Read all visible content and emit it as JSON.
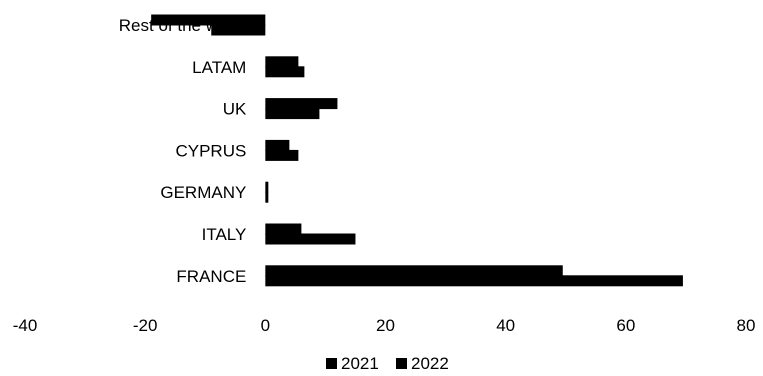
{
  "chart_data": {
    "type": "bar",
    "orientation": "horizontal",
    "categories": [
      "Rest of the world",
      "LATAM",
      "UK",
      "CYPRUS",
      "GERMANY",
      "ITALY",
      "FRANCE"
    ],
    "series": [
      {
        "name": "2021",
        "color": "#000000",
        "values": [
          -19,
          5.5,
          12,
          4,
          0.5,
          6,
          49.5
        ]
      },
      {
        "name": "2022",
        "color": "#000000",
        "values": [
          -9,
          6.5,
          9,
          5.5,
          0.5,
          15,
          69.5
        ]
      }
    ],
    "xlim": [
      -40,
      80
    ],
    "xticks": [
      -40,
      -20,
      0,
      20,
      40,
      60,
      80
    ],
    "xtick_labels": [
      "-40",
      "-20",
      "0",
      "20",
      "40",
      "60",
      "80"
    ],
    "title": "",
    "xlabel": "",
    "ylabel": "",
    "grid": false,
    "legend_position": "bottom"
  }
}
